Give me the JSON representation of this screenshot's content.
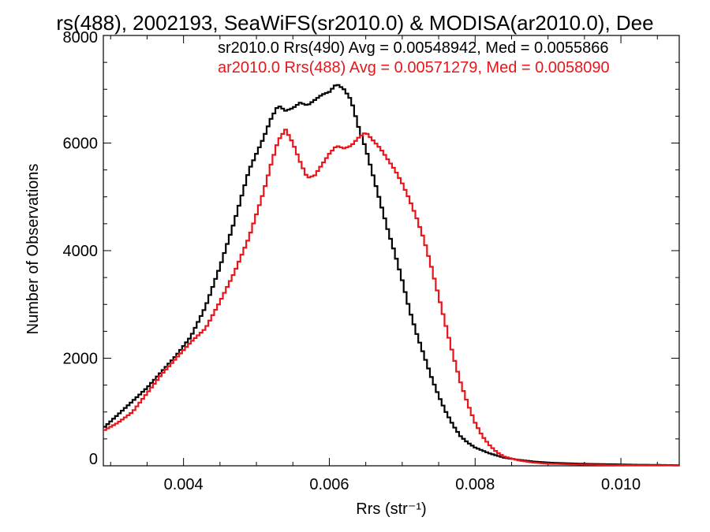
{
  "chart_data": {
    "type": "line",
    "title": "rs(488), 2002193, SeaWiFS(sr2010.0) & MODISA(ar2010.0), Dee",
    "xlabel": "Rrs (str⁻¹)",
    "ylabel": "Number of Observations",
    "xlim": [
      0.0029,
      0.0108
    ],
    "ylim": [
      0,
      8000
    ],
    "xticks": [
      0.004,
      0.006,
      0.008,
      0.01
    ],
    "xtick_labels": [
      "0.004",
      "0.006",
      "0.008",
      "0.010"
    ],
    "yticks": [
      0,
      2000,
      4000,
      6000,
      8000
    ],
    "ytick_labels": [
      "0",
      "2000",
      "4000",
      "6000",
      "8000"
    ],
    "grid": false,
    "legend_position": "top-right",
    "series": [
      {
        "name": "sr2010.0 Rrs(490) Avg = 0.00548942, Med = 0.0055866",
        "color": "#000000",
        "x": [
          0.0029,
          0.0031,
          0.0033,
          0.0035,
          0.0037,
          0.0039,
          0.0041,
          0.0043,
          0.0045,
          0.0047,
          0.0049,
          0.0051,
          0.0052,
          0.0053,
          0.0054,
          0.0055,
          0.0056,
          0.0057,
          0.0058,
          0.0059,
          0.006,
          0.0061,
          0.0062,
          0.0063,
          0.0064,
          0.0065,
          0.0066,
          0.0067,
          0.0068,
          0.0069,
          0.007,
          0.0071,
          0.0072,
          0.0073,
          0.0074,
          0.0075,
          0.0076,
          0.0077,
          0.0078,
          0.0079,
          0.008,
          0.0082,
          0.0084,
          0.0086,
          0.0088,
          0.009,
          0.0094,
          0.0098,
          0.0102,
          0.0106,
          0.0108
        ],
        "y": [
          700,
          950,
          1200,
          1450,
          1750,
          2050,
          2400,
          2950,
          3700,
          4550,
          5500,
          6100,
          6450,
          6700,
          6600,
          6650,
          6750,
          6700,
          6800,
          6900,
          6950,
          7100,
          7000,
          6800,
          6300,
          5900,
          5400,
          4900,
          4400,
          3950,
          3450,
          2900,
          2450,
          2050,
          1650,
          1300,
          1000,
          750,
          550,
          430,
          340,
          230,
          150,
          110,
          80,
          60,
          40,
          30,
          20,
          15,
          10
        ]
      },
      {
        "name": "ar2010.0 Rrs(488) Avg = 0.00571279, Med = 0.0058090",
        "color": "#e8161b",
        "x": [
          0.0029,
          0.0031,
          0.0033,
          0.0035,
          0.0037,
          0.0039,
          0.0041,
          0.0043,
          0.0045,
          0.0047,
          0.0049,
          0.0051,
          0.0052,
          0.0053,
          0.0054,
          0.0055,
          0.0056,
          0.0057,
          0.0058,
          0.0059,
          0.006,
          0.0061,
          0.0062,
          0.0063,
          0.0064,
          0.0065,
          0.0066,
          0.0067,
          0.0068,
          0.0069,
          0.007,
          0.0071,
          0.0072,
          0.0073,
          0.0074,
          0.0075,
          0.0076,
          0.0077,
          0.0078,
          0.0079,
          0.008,
          0.0081,
          0.0082,
          0.0083,
          0.0084,
          0.0086,
          0.0088,
          0.009,
          0.0094,
          0.0098,
          0.0102,
          0.0106,
          0.0108
        ],
        "y": [
          650,
          800,
          1000,
          1350,
          1700,
          2000,
          2300,
          2550,
          3050,
          3600,
          4250,
          5100,
          5600,
          6050,
          6250,
          6000,
          5650,
          5350,
          5400,
          5600,
          5800,
          5950,
          5900,
          5950,
          6100,
          6200,
          6050,
          5900,
          5700,
          5500,
          5250,
          4950,
          4600,
          4200,
          3700,
          3150,
          2600,
          2050,
          1550,
          1150,
          800,
          550,
          380,
          250,
          170,
          100,
          60,
          40,
          25,
          15,
          10,
          10,
          5
        ]
      }
    ]
  }
}
